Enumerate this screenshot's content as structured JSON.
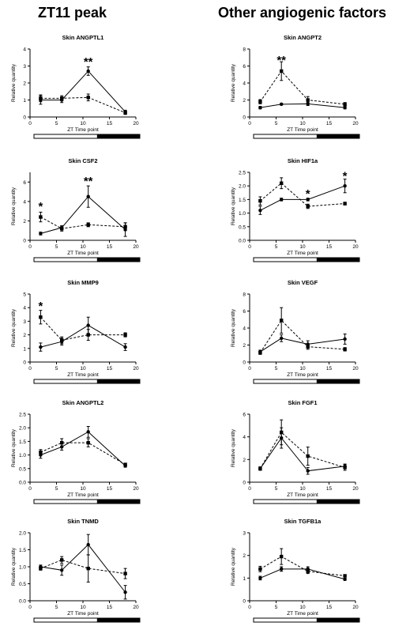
{
  "columns": {
    "left_title": "ZT11 peak",
    "right_title": "Other angiogenic factors"
  },
  "colors": {
    "line": "#000000",
    "light_bar": "#ffffff",
    "dark_bar": "#000000"
  },
  "chart_data": [
    {
      "type": "line",
      "title": "Skin ANGPTL1",
      "xlabel": "ZT Time point",
      "ylabel": "Relative quantity",
      "xlim": [
        0,
        20
      ],
      "ylim": [
        0,
        4
      ],
      "xticks": [
        0,
        5,
        10,
        15,
        20
      ],
      "yticks": [
        0,
        1,
        2,
        3,
        4
      ],
      "x": [
        2,
        6,
        11,
        18
      ],
      "series": [
        {
          "style": "solid",
          "marker": "circle",
          "values": [
            1.0,
            1.0,
            2.7,
            0.3
          ],
          "errors": [
            0.25,
            0.15,
            0.25,
            0.1
          ]
        },
        {
          "style": "dashed",
          "marker": "square",
          "values": [
            1.1,
            1.1,
            1.15,
            0.25
          ],
          "errors": [
            0.2,
            0.15,
            0.2,
            0.1
          ]
        }
      ],
      "annotations": [
        {
          "x": 11,
          "y": 3.3,
          "text": "**"
        }
      ]
    },
    {
      "type": "line",
      "title": "Skin ANGPT2",
      "xlabel": "ZT Time point",
      "ylabel": "Relative quantity",
      "xlim": [
        0,
        20
      ],
      "ylim": [
        0,
        8
      ],
      "xticks": [
        0,
        5,
        10,
        15,
        20
      ],
      "yticks": [
        0,
        2,
        4,
        6,
        8
      ],
      "x": [
        2,
        6,
        11,
        18
      ],
      "series": [
        {
          "style": "solid",
          "marker": "circle",
          "values": [
            1.1,
            1.5,
            1.55,
            1.1
          ],
          "errors": [
            0.15,
            0.1,
            0.2,
            0.15
          ]
        },
        {
          "style": "dashed",
          "marker": "square",
          "values": [
            1.8,
            5.4,
            2.0,
            1.5
          ],
          "errors": [
            0.25,
            1.1,
            0.4,
            0.2
          ]
        }
      ],
      "annotations": [
        {
          "x": 6,
          "y": 6.8,
          "text": "**"
        }
      ]
    },
    {
      "type": "line",
      "title": "Skin CSF2",
      "xlabel": "ZT Time point",
      "ylabel": "Relative quantity",
      "xlim": [
        0,
        20
      ],
      "ylim": [
        0,
        7
      ],
      "xticks": [
        0,
        5,
        10,
        15,
        20
      ],
      "yticks": [
        0,
        2,
        4,
        6
      ],
      "x": [
        2,
        6,
        11,
        18
      ],
      "series": [
        {
          "style": "solid",
          "marker": "circle",
          "values": [
            0.7,
            1.3,
            4.5,
            1.1
          ],
          "errors": [
            0.15,
            0.2,
            1.1,
            0.7
          ]
        },
        {
          "style": "dashed",
          "marker": "square",
          "values": [
            2.4,
            1.2,
            1.6,
            1.4
          ],
          "errors": [
            0.5,
            0.25,
            0.2,
            0.4
          ]
        }
      ],
      "annotations": [
        {
          "x": 2,
          "y": 3.6,
          "text": "*"
        },
        {
          "x": 11,
          "y": 6.2,
          "text": "**"
        }
      ]
    },
    {
      "type": "line",
      "title": "Skin HIF1a",
      "xlabel": "ZT Time point",
      "ylabel": "Relative quantity",
      "xlim": [
        0,
        20
      ],
      "ylim": [
        0,
        2.5
      ],
      "xticks": [
        0,
        5,
        10,
        15,
        20
      ],
      "yticks": [
        0,
        0.5,
        1.0,
        1.5,
        2.0,
        2.5
      ],
      "x": [
        2,
        6,
        11,
        18
      ],
      "series": [
        {
          "style": "solid",
          "marker": "circle",
          "values": [
            1.1,
            1.5,
            1.5,
            2.0
          ],
          "errors": [
            0.15,
            0.05,
            0.05,
            0.25
          ]
        },
        {
          "style": "dashed",
          "marker": "square",
          "values": [
            1.45,
            2.1,
            1.25,
            1.35
          ],
          "errors": [
            0.15,
            0.2,
            0.08,
            0.05
          ]
        }
      ],
      "annotations": [
        {
          "x": 11,
          "y": 1.75,
          "text": "*"
        },
        {
          "x": 18,
          "y": 2.4,
          "text": "*"
        }
      ]
    },
    {
      "type": "line",
      "title": "Skin MMP9",
      "xlabel": "ZT Time point",
      "ylabel": "Relative quantity",
      "xlim": [
        0,
        20
      ],
      "ylim": [
        0,
        5
      ],
      "xticks": [
        0,
        5,
        10,
        15,
        20
      ],
      "yticks": [
        0,
        1,
        2,
        3,
        4,
        5
      ],
      "x": [
        2,
        6,
        11,
        18
      ],
      "series": [
        {
          "style": "solid",
          "marker": "circle",
          "values": [
            1.1,
            1.5,
            2.7,
            1.1
          ],
          "errors": [
            0.3,
            0.25,
            0.6,
            0.25
          ]
        },
        {
          "style": "dashed",
          "marker": "square",
          "values": [
            3.3,
            1.6,
            2.0,
            2.0
          ],
          "errors": [
            0.5,
            0.25,
            0.4,
            0.15
          ]
        }
      ],
      "annotations": [
        {
          "x": 2,
          "y": 4.2,
          "text": "*"
        }
      ]
    },
    {
      "type": "line",
      "title": "Skin VEGF",
      "xlabel": "ZT Time point",
      "ylabel": "Relative quantity",
      "xlim": [
        0,
        20
      ],
      "ylim": [
        0,
        8
      ],
      "xticks": [
        0,
        5,
        10,
        15,
        20
      ],
      "yticks": [
        0,
        2,
        4,
        6,
        8
      ],
      "x": [
        2,
        6,
        11,
        18
      ],
      "series": [
        {
          "style": "solid",
          "marker": "circle",
          "values": [
            1.2,
            2.8,
            2.1,
            2.7
          ],
          "errors": [
            0.2,
            0.4,
            0.4,
            0.6
          ]
        },
        {
          "style": "dashed",
          "marker": "square",
          "values": [
            1.1,
            4.9,
            1.8,
            1.5
          ],
          "errors": [
            0.2,
            1.5,
            0.3,
            0.2
          ]
        }
      ],
      "annotations": []
    },
    {
      "type": "line",
      "title": "Skin ANGPTL2",
      "xlabel": "ZT Time point",
      "ylabel": "Relative quantity",
      "xlim": [
        0,
        20
      ],
      "ylim": [
        0,
        2.5
      ],
      "xticks": [
        0,
        5,
        10,
        15,
        20
      ],
      "yticks": [
        0,
        0.5,
        1.0,
        1.5,
        2.0,
        2.5
      ],
      "x": [
        2,
        6,
        11,
        18
      ],
      "series": [
        {
          "style": "solid",
          "marker": "circle",
          "values": [
            1.0,
            1.3,
            1.85,
            0.6
          ],
          "errors": [
            0.12,
            0.12,
            0.2,
            0.05
          ]
        },
        {
          "style": "dashed",
          "marker": "square",
          "values": [
            1.1,
            1.45,
            1.45,
            0.65
          ],
          "errors": [
            0.1,
            0.15,
            0.15,
            0.05
          ]
        }
      ],
      "annotations": []
    },
    {
      "type": "line",
      "title": "Skin FGF1",
      "xlabel": "ZT Time point",
      "ylabel": "Relative quantity",
      "xlim": [
        0,
        20
      ],
      "ylim": [
        0,
        6
      ],
      "xticks": [
        0,
        5,
        10,
        15,
        20
      ],
      "yticks": [
        0,
        2,
        4,
        6
      ],
      "x": [
        2,
        6,
        11,
        18
      ],
      "series": [
        {
          "style": "solid",
          "marker": "circle",
          "values": [
            1.2,
            3.9,
            1.0,
            1.4
          ],
          "errors": [
            0.15,
            0.9,
            0.3,
            0.2
          ]
        },
        {
          "style": "dashed",
          "marker": "square",
          "values": [
            1.2,
            4.4,
            2.3,
            1.3
          ],
          "errors": [
            0.15,
            1.1,
            0.8,
            0.25
          ]
        }
      ],
      "annotations": []
    },
    {
      "type": "line",
      "title": "Skin TNMD",
      "xlabel": "ZT Time point",
      "ylabel": "Relative quantity",
      "xlim": [
        0,
        20
      ],
      "ylim": [
        0,
        2.0
      ],
      "xticks": [
        0,
        5,
        10,
        15,
        20
      ],
      "yticks": [
        0,
        0.5,
        1.0,
        1.5,
        2.0
      ],
      "x": [
        2,
        6,
        11,
        18
      ],
      "series": [
        {
          "style": "solid",
          "marker": "circle",
          "values": [
            1.0,
            0.9,
            1.65,
            0.25
          ],
          "errors": [
            0.05,
            0.15,
            0.3,
            0.2
          ]
        },
        {
          "style": "dashed",
          "marker": "square",
          "values": [
            0.95,
            1.2,
            0.95,
            0.8
          ],
          "errors": [
            0.05,
            0.1,
            0.4,
            0.15
          ]
        }
      ],
      "annotations": []
    },
    {
      "type": "line",
      "title": "Skin TGFB1a",
      "xlabel": "ZT Time point",
      "ylabel": "Relative quantity",
      "xlim": [
        0,
        20
      ],
      "ylim": [
        0,
        3
      ],
      "xticks": [
        0,
        5,
        10,
        15,
        20
      ],
      "yticks": [
        0,
        1,
        2,
        3
      ],
      "x": [
        2,
        6,
        11,
        18
      ],
      "series": [
        {
          "style": "solid",
          "marker": "circle",
          "values": [
            1.0,
            1.4,
            1.4,
            0.95
          ],
          "errors": [
            0.08,
            0.1,
            0.1,
            0.05
          ]
        },
        {
          "style": "dashed",
          "marker": "square",
          "values": [
            1.4,
            1.95,
            1.3,
            1.1
          ],
          "errors": [
            0.12,
            0.35,
            0.1,
            0.05
          ]
        }
      ],
      "annotations": []
    }
  ]
}
